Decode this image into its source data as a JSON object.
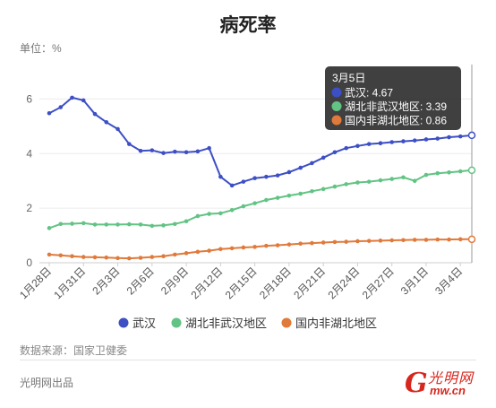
{
  "title": "病死率",
  "unit_label": "单位：%",
  "source": "数据来源：国家卫健委",
  "producer": "光明网出品",
  "logo": {
    "mark": "G",
    "name": "光明网",
    "domain": "mw.cn"
  },
  "tooltip": {
    "date": "3月5日",
    "rows": [
      {
        "label": "武汉",
        "value": "4.67"
      },
      {
        "label": "湖北非武汉地区",
        "value": "3.39"
      },
      {
        "label": "国内非湖北地区",
        "value": "0.86"
      }
    ]
  },
  "chart_data": {
    "type": "line",
    "title": "病死率",
    "ylabel": "单位：%",
    "ylim": [
      0,
      7
    ],
    "yticks": [
      0,
      2,
      4,
      6
    ],
    "grid": true,
    "legend": "bottom",
    "x": [
      "1月28日",
      "1月29日",
      "1月30日",
      "1月31日",
      "2月1日",
      "2月2日",
      "2月3日",
      "2月4日",
      "2月5日",
      "2月6日",
      "2月7日",
      "2月8日",
      "2月9日",
      "2月10日",
      "2月11日",
      "2月12日",
      "2月13日",
      "2月14日",
      "2月15日",
      "2月16日",
      "2月17日",
      "2月18日",
      "2月19日",
      "2月20日",
      "2月21日",
      "2月22日",
      "2月23日",
      "2月24日",
      "2月25日",
      "2月26日",
      "2月27日",
      "2月28日",
      "2月29日",
      "3月1日",
      "3月2日",
      "3月3日",
      "3月4日",
      "3月5日"
    ],
    "xtick_labels": [
      "1月28日",
      "1月31日",
      "2月3日",
      "2月6日",
      "2月9日",
      "2月12日",
      "2月15日",
      "2月18日",
      "2月21日",
      "2月24日",
      "2月27日",
      "3月1日",
      "3月4日"
    ],
    "series": [
      {
        "name": "武汉",
        "color": "#3d4fc4",
        "values": [
          5.48,
          5.7,
          6.05,
          5.95,
          5.45,
          5.15,
          4.9,
          4.35,
          4.1,
          4.12,
          4.02,
          4.07,
          4.05,
          4.08,
          4.2,
          3.15,
          2.83,
          2.97,
          3.1,
          3.15,
          3.2,
          3.32,
          3.48,
          3.65,
          3.85,
          4.05,
          4.2,
          4.28,
          4.35,
          4.38,
          4.42,
          4.45,
          4.48,
          4.52,
          4.55,
          4.6,
          4.63,
          4.67
        ]
      },
      {
        "name": "湖北非武汉地区",
        "color": "#62c384",
        "values": [
          1.27,
          1.42,
          1.43,
          1.45,
          1.4,
          1.4,
          1.4,
          1.41,
          1.4,
          1.35,
          1.37,
          1.42,
          1.52,
          1.71,
          1.79,
          1.81,
          1.93,
          2.07,
          2.18,
          2.3,
          2.38,
          2.46,
          2.53,
          2.62,
          2.7,
          2.79,
          2.88,
          2.94,
          2.97,
          3.02,
          3.07,
          3.13,
          3.0,
          3.22,
          3.28,
          3.31,
          3.35,
          3.39
        ]
      },
      {
        "name": "国内非湖北地区",
        "color": "#e07a3b",
        "values": [
          0.3,
          0.27,
          0.24,
          0.21,
          0.2,
          0.19,
          0.17,
          0.16,
          0.18,
          0.21,
          0.24,
          0.3,
          0.35,
          0.4,
          0.44,
          0.5,
          0.53,
          0.56,
          0.58,
          0.62,
          0.64,
          0.67,
          0.7,
          0.72,
          0.74,
          0.76,
          0.77,
          0.79,
          0.8,
          0.81,
          0.82,
          0.83,
          0.84,
          0.84,
          0.85,
          0.85,
          0.86,
          0.86
        ]
      }
    ]
  }
}
